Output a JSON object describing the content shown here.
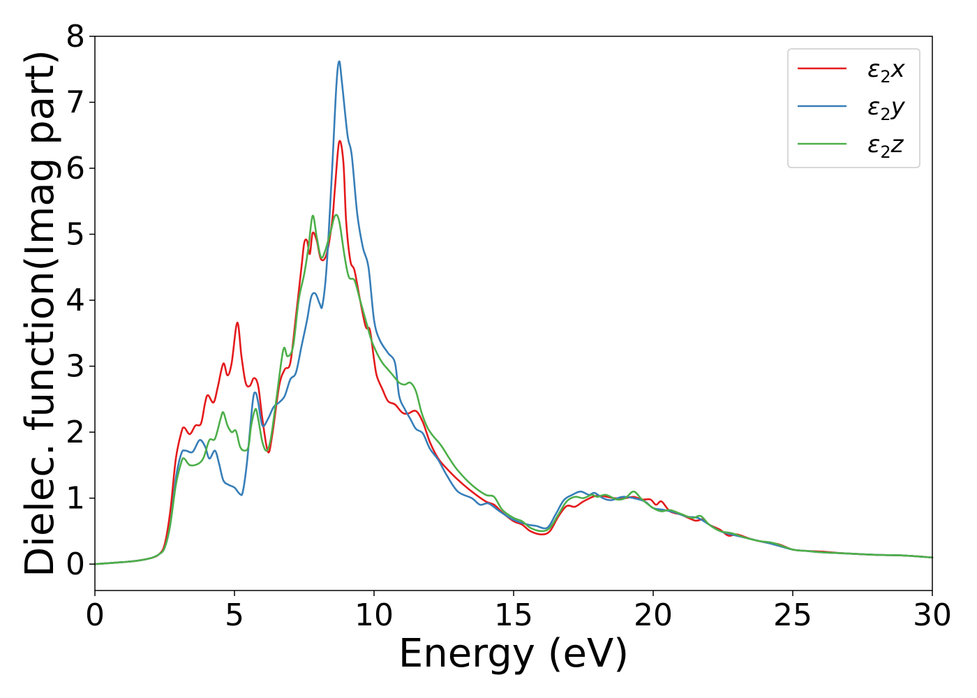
{
  "chart_data": {
    "type": "line",
    "xlabel": "Energy (eV)",
    "ylabel": "Dielec. function(Imag part)",
    "xlim": [
      0,
      30
    ],
    "ylim": [
      -0.4,
      8
    ],
    "xticks": [
      0,
      5,
      10,
      15,
      20,
      25,
      30
    ],
    "yticks": [
      0,
      1,
      2,
      3,
      4,
      5,
      6,
      7,
      8
    ],
    "grid": false,
    "legend_position": "top-right",
    "series": [
      {
        "name": "ε2x",
        "legend": {
          "base": "ε",
          "sub": "2",
          "suffix": "x"
        },
        "color": "#e41a1c",
        "points": [
          [
            0,
            0.0
          ],
          [
            1,
            0.03
          ],
          [
            1.5,
            0.05
          ],
          [
            2,
            0.09
          ],
          [
            2.3,
            0.15
          ],
          [
            2.5,
            0.3
          ],
          [
            2.7,
            0.8
          ],
          [
            2.9,
            1.6
          ],
          [
            3.1,
            2.0
          ],
          [
            3.2,
            2.07
          ],
          [
            3.4,
            1.97
          ],
          [
            3.6,
            2.1
          ],
          [
            3.8,
            2.13
          ],
          [
            3.95,
            2.45
          ],
          [
            4.05,
            2.56
          ],
          [
            4.25,
            2.45
          ],
          [
            4.4,
            2.68
          ],
          [
            4.6,
            3.04
          ],
          [
            4.75,
            2.86
          ],
          [
            4.9,
            3.05
          ],
          [
            5.1,
            3.66
          ],
          [
            5.25,
            3.15
          ],
          [
            5.4,
            2.75
          ],
          [
            5.55,
            2.7
          ],
          [
            5.7,
            2.82
          ],
          [
            5.85,
            2.7
          ],
          [
            6.0,
            2.2
          ],
          [
            6.2,
            1.7
          ],
          [
            6.35,
            1.95
          ],
          [
            6.6,
            2.7
          ],
          [
            6.8,
            2.95
          ],
          [
            7.0,
            3.05
          ],
          [
            7.2,
            3.75
          ],
          [
            7.4,
            4.5
          ],
          [
            7.5,
            4.87
          ],
          [
            7.6,
            4.9
          ],
          [
            7.7,
            4.7
          ],
          [
            7.8,
            5.02
          ],
          [
            7.95,
            4.9
          ],
          [
            8.1,
            4.62
          ],
          [
            8.3,
            4.7
          ],
          [
            8.5,
            5.2
          ],
          [
            8.6,
            5.7
          ],
          [
            8.75,
            6.4
          ],
          [
            8.9,
            6.1
          ],
          [
            9.0,
            5.2
          ],
          [
            9.15,
            4.6
          ],
          [
            9.3,
            4.45
          ],
          [
            9.5,
            4.0
          ],
          [
            9.7,
            3.6
          ],
          [
            9.85,
            3.55
          ],
          [
            10.0,
            3.1
          ],
          [
            10.1,
            2.85
          ],
          [
            10.3,
            2.65
          ],
          [
            10.5,
            2.47
          ],
          [
            10.75,
            2.42
          ],
          [
            11.0,
            2.3
          ],
          [
            11.2,
            2.28
          ],
          [
            11.5,
            2.32
          ],
          [
            11.75,
            2.15
          ],
          [
            12.0,
            1.85
          ],
          [
            12.3,
            1.6
          ],
          [
            12.6,
            1.45
          ],
          [
            13.0,
            1.28
          ],
          [
            13.5,
            1.1
          ],
          [
            14.0,
            0.95
          ],
          [
            14.3,
            0.9
          ],
          [
            14.6,
            0.78
          ],
          [
            15.0,
            0.65
          ],
          [
            15.3,
            0.6
          ],
          [
            15.6,
            0.5
          ],
          [
            16.0,
            0.45
          ],
          [
            16.3,
            0.5
          ],
          [
            16.6,
            0.72
          ],
          [
            16.9,
            0.88
          ],
          [
            17.2,
            0.87
          ],
          [
            17.5,
            0.95
          ],
          [
            17.9,
            1.03
          ],
          [
            18.2,
            1.03
          ],
          [
            18.6,
            1.0
          ],
          [
            19.0,
            1.0
          ],
          [
            19.3,
            1.02
          ],
          [
            19.6,
            0.98
          ],
          [
            19.9,
            0.98
          ],
          [
            20.1,
            0.9
          ],
          [
            20.3,
            0.95
          ],
          [
            20.6,
            0.8
          ],
          [
            21.0,
            0.75
          ],
          [
            21.5,
            0.66
          ],
          [
            21.8,
            0.68
          ],
          [
            22.0,
            0.6
          ],
          [
            22.4,
            0.52
          ],
          [
            22.7,
            0.43
          ],
          [
            23.0,
            0.45
          ],
          [
            23.5,
            0.38
          ],
          [
            24.0,
            0.33
          ],
          [
            24.5,
            0.3
          ],
          [
            25.0,
            0.22
          ],
          [
            25.5,
            0.2
          ],
          [
            26.0,
            0.19
          ],
          [
            27.0,
            0.16
          ],
          [
            28.0,
            0.14
          ],
          [
            29.0,
            0.13
          ],
          [
            30,
            0.1
          ]
        ]
      },
      {
        "name": "ε2y",
        "legend": {
          "base": "ε",
          "sub": "2",
          "suffix": "y"
        },
        "color": "#377eb8",
        "points": [
          [
            0,
            0.0
          ],
          [
            1,
            0.03
          ],
          [
            1.5,
            0.05
          ],
          [
            2,
            0.09
          ],
          [
            2.3,
            0.15
          ],
          [
            2.5,
            0.25
          ],
          [
            2.7,
            0.6
          ],
          [
            2.9,
            1.3
          ],
          [
            3.1,
            1.68
          ],
          [
            3.25,
            1.72
          ],
          [
            3.5,
            1.7
          ],
          [
            3.75,
            1.88
          ],
          [
            3.95,
            1.78
          ],
          [
            4.1,
            1.6
          ],
          [
            4.3,
            1.72
          ],
          [
            4.45,
            1.52
          ],
          [
            4.6,
            1.27
          ],
          [
            4.8,
            1.2
          ],
          [
            5.0,
            1.16
          ],
          [
            5.2,
            1.06
          ],
          [
            5.3,
            1.1
          ],
          [
            5.45,
            1.55
          ],
          [
            5.65,
            2.45
          ],
          [
            5.75,
            2.6
          ],
          [
            5.85,
            2.45
          ],
          [
            6.0,
            2.1
          ],
          [
            6.2,
            2.2
          ],
          [
            6.4,
            2.38
          ],
          [
            6.6,
            2.45
          ],
          [
            6.8,
            2.55
          ],
          [
            7.0,
            2.8
          ],
          [
            7.2,
            2.9
          ],
          [
            7.4,
            3.3
          ],
          [
            7.6,
            3.7
          ],
          [
            7.75,
            4.05
          ],
          [
            7.9,
            4.1
          ],
          [
            8.05,
            3.95
          ],
          [
            8.15,
            3.92
          ],
          [
            8.3,
            4.5
          ],
          [
            8.5,
            6.0
          ],
          [
            8.65,
            7.25
          ],
          [
            8.75,
            7.62
          ],
          [
            8.85,
            7.3
          ],
          [
            9.05,
            6.5
          ],
          [
            9.2,
            6.2
          ],
          [
            9.4,
            5.3
          ],
          [
            9.6,
            4.8
          ],
          [
            9.8,
            4.5
          ],
          [
            10.0,
            3.7
          ],
          [
            10.2,
            3.4
          ],
          [
            10.5,
            3.2
          ],
          [
            10.75,
            3.05
          ],
          [
            10.9,
            2.55
          ],
          [
            11.1,
            2.35
          ],
          [
            11.3,
            2.2
          ],
          [
            11.5,
            2.05
          ],
          [
            11.75,
            1.98
          ],
          [
            12.0,
            1.75
          ],
          [
            12.3,
            1.58
          ],
          [
            12.6,
            1.35
          ],
          [
            13.0,
            1.1
          ],
          [
            13.5,
            1.0
          ],
          [
            13.8,
            0.9
          ],
          [
            14.1,
            0.92
          ],
          [
            14.5,
            0.8
          ],
          [
            15.0,
            0.67
          ],
          [
            15.5,
            0.6
          ],
          [
            15.8,
            0.58
          ],
          [
            16.2,
            0.55
          ],
          [
            16.5,
            0.75
          ],
          [
            16.8,
            0.97
          ],
          [
            17.1,
            1.05
          ],
          [
            17.4,
            1.1
          ],
          [
            17.7,
            1.05
          ],
          [
            17.9,
            1.08
          ],
          [
            18.2,
            1.0
          ],
          [
            18.5,
            0.97
          ],
          [
            18.9,
            1.02
          ],
          [
            19.3,
            1.0
          ],
          [
            19.7,
            0.95
          ],
          [
            20.0,
            0.85
          ],
          [
            20.4,
            0.82
          ],
          [
            20.8,
            0.78
          ],
          [
            21.2,
            0.72
          ],
          [
            21.6,
            0.7
          ],
          [
            22.0,
            0.6
          ],
          [
            22.4,
            0.5
          ],
          [
            22.8,
            0.45
          ],
          [
            23.3,
            0.4
          ],
          [
            23.8,
            0.35
          ],
          [
            24.3,
            0.3
          ],
          [
            25.0,
            0.22
          ],
          [
            25.5,
            0.2
          ],
          [
            26.0,
            0.18
          ],
          [
            27.0,
            0.16
          ],
          [
            28.0,
            0.14
          ],
          [
            29.0,
            0.13
          ],
          [
            30,
            0.1
          ]
        ]
      },
      {
        "name": "ε2z",
        "legend": {
          "base": "ε",
          "sub": "2",
          "suffix": "z"
        },
        "color": "#4daf4a",
        "points": [
          [
            0,
            0.0
          ],
          [
            1,
            0.03
          ],
          [
            1.5,
            0.05
          ],
          [
            2,
            0.09
          ],
          [
            2.3,
            0.15
          ],
          [
            2.5,
            0.25
          ],
          [
            2.7,
            0.6
          ],
          [
            2.9,
            1.2
          ],
          [
            3.1,
            1.55
          ],
          [
            3.2,
            1.6
          ],
          [
            3.4,
            1.5
          ],
          [
            3.7,
            1.52
          ],
          [
            3.9,
            1.62
          ],
          [
            4.1,
            1.88
          ],
          [
            4.3,
            1.9
          ],
          [
            4.5,
            2.2
          ],
          [
            4.6,
            2.3
          ],
          [
            4.75,
            2.1
          ],
          [
            4.9,
            2.0
          ],
          [
            5.05,
            2.02
          ],
          [
            5.2,
            1.78
          ],
          [
            5.35,
            1.72
          ],
          [
            5.5,
            1.78
          ],
          [
            5.6,
            2.1
          ],
          [
            5.75,
            2.35
          ],
          [
            5.85,
            2.2
          ],
          [
            6.0,
            1.85
          ],
          [
            6.15,
            1.72
          ],
          [
            6.3,
            1.9
          ],
          [
            6.5,
            2.5
          ],
          [
            6.75,
            3.25
          ],
          [
            6.9,
            3.15
          ],
          [
            7.1,
            3.3
          ],
          [
            7.3,
            4.0
          ],
          [
            7.5,
            4.4
          ],
          [
            7.65,
            4.8
          ],
          [
            7.8,
            5.28
          ],
          [
            7.95,
            4.95
          ],
          [
            8.1,
            4.65
          ],
          [
            8.25,
            4.75
          ],
          [
            8.45,
            5.05
          ],
          [
            8.6,
            5.28
          ],
          [
            8.75,
            5.2
          ],
          [
            8.95,
            4.65
          ],
          [
            9.1,
            4.35
          ],
          [
            9.3,
            4.3
          ],
          [
            9.5,
            4.0
          ],
          [
            9.7,
            3.7
          ],
          [
            9.9,
            3.4
          ],
          [
            10.1,
            3.2
          ],
          [
            10.3,
            3.05
          ],
          [
            10.5,
            2.95
          ],
          [
            10.7,
            2.85
          ],
          [
            10.9,
            2.75
          ],
          [
            11.1,
            2.72
          ],
          [
            11.3,
            2.75
          ],
          [
            11.5,
            2.62
          ],
          [
            11.7,
            2.3
          ],
          [
            11.9,
            2.08
          ],
          [
            12.1,
            1.95
          ],
          [
            12.4,
            1.8
          ],
          [
            12.7,
            1.6
          ],
          [
            13.0,
            1.42
          ],
          [
            13.5,
            1.2
          ],
          [
            14.0,
            1.05
          ],
          [
            14.3,
            1.02
          ],
          [
            14.6,
            0.82
          ],
          [
            15.0,
            0.7
          ],
          [
            15.3,
            0.65
          ],
          [
            15.6,
            0.55
          ],
          [
            16.0,
            0.5
          ],
          [
            16.3,
            0.55
          ],
          [
            16.6,
            0.75
          ],
          [
            16.9,
            0.95
          ],
          [
            17.2,
            1.02
          ],
          [
            17.5,
            1.0
          ],
          [
            17.8,
            1.05
          ],
          [
            18.0,
            1.02
          ],
          [
            18.3,
            1.05
          ],
          [
            18.7,
            0.98
          ],
          [
            19.0,
            1.0
          ],
          [
            19.3,
            1.1
          ],
          [
            19.6,
            0.98
          ],
          [
            20.0,
            0.85
          ],
          [
            20.3,
            0.8
          ],
          [
            20.6,
            0.82
          ],
          [
            21.0,
            0.76
          ],
          [
            21.4,
            0.7
          ],
          [
            21.7,
            0.73
          ],
          [
            22.0,
            0.6
          ],
          [
            22.4,
            0.5
          ],
          [
            22.8,
            0.47
          ],
          [
            23.3,
            0.4
          ],
          [
            23.8,
            0.35
          ],
          [
            24.3,
            0.32
          ],
          [
            25.0,
            0.22
          ],
          [
            25.5,
            0.2
          ],
          [
            26.0,
            0.18
          ],
          [
            27.0,
            0.16
          ],
          [
            28.0,
            0.14
          ],
          [
            29.0,
            0.13
          ],
          [
            30,
            0.1
          ]
        ]
      }
    ]
  }
}
